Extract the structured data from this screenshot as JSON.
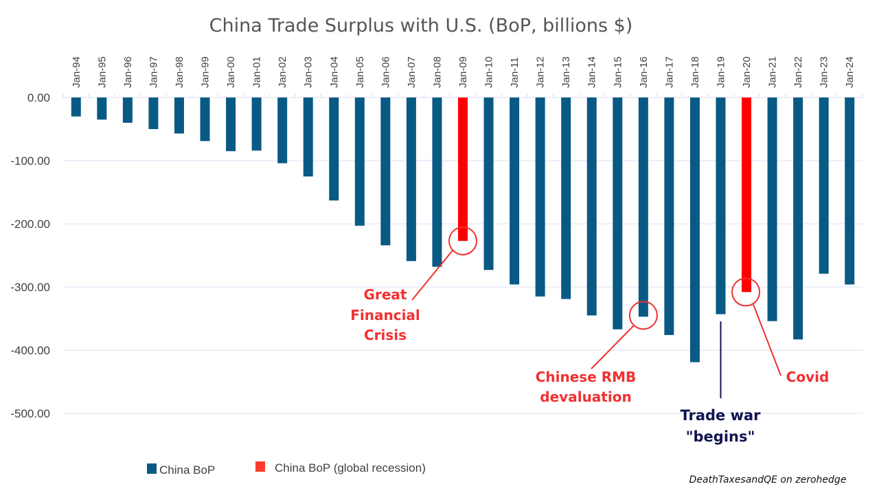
{
  "chart_data": {
    "type": "bar",
    "title": "China Trade Surplus with U.S. (BoP, billions $)",
    "xlabel": "",
    "ylabel": "",
    "ylim": [
      -500,
      0
    ],
    "yticks": [
      0,
      -100,
      -200,
      -300,
      -400,
      -500
    ],
    "ytick_labels": [
      "0.00",
      "-100.00",
      "-200.00",
      "-300.00",
      "-400.00",
      "-500.00"
    ],
    "grid": true,
    "x_axis_position": "top",
    "categories": [
      "Jan-94",
      "Jan-95",
      "Jan-96",
      "Jan-97",
      "Jan-98",
      "Jan-99",
      "Jan-00",
      "Jan-01",
      "Jan-02",
      "Jan-03",
      "Jan-04",
      "Jan-05",
      "Jan-06",
      "Jan-07",
      "Jan-08",
      "Jan-09",
      "Jan-10",
      "Jan-11",
      "Jan-12",
      "Jan-13",
      "Jan-14",
      "Jan-15",
      "Jan-16",
      "Jan-17",
      "Jan-18",
      "Jan-19",
      "Jan-20",
      "Jan-21",
      "Jan-22",
      "Jan-23",
      "Jan-24"
    ],
    "values": [
      -30,
      -35,
      -40,
      -50,
      -57,
      -69,
      -85,
      -84,
      -104,
      -125,
      -163,
      -203,
      -234,
      -259,
      -268,
      -227,
      -273,
      -296,
      -315,
      -319,
      -345,
      -367,
      -347,
      -376,
      -419,
      -343,
      -308,
      -354,
      -383,
      -279,
      -296
    ],
    "series": [
      {
        "name": "China BoP",
        "color": "#085a84"
      },
      {
        "name": "China BoP (global recession)",
        "color": "#ff0000",
        "categories": [
          "Jan-09",
          "Jan-20"
        ]
      }
    ],
    "legend": {
      "position": "bottom-left",
      "entries": [
        {
          "label": "China BoP",
          "color": "#085a84"
        },
        {
          "label": "China BoP (global recession)",
          "color": "#ff3b30"
        }
      ]
    },
    "annotations": [
      {
        "category": "Jan-09",
        "lines": [
          "Great",
          "Financial",
          "Crisis"
        ],
        "color": "#f23030",
        "circled": true
      },
      {
        "category": "Jan-16",
        "lines": [
          "Chinese RMB",
          "devaluation"
        ],
        "color": "#f23030",
        "circled": true
      },
      {
        "category": "Jan-19",
        "lines": [
          "Trade war",
          "\"begins\""
        ],
        "color": "#0f1450",
        "circled": false
      },
      {
        "category": "Jan-20",
        "lines": [
          "Covid"
        ],
        "color": "#f23030",
        "circled": true
      }
    ]
  },
  "credit": "DeathTaxesandQE on zerohedge"
}
